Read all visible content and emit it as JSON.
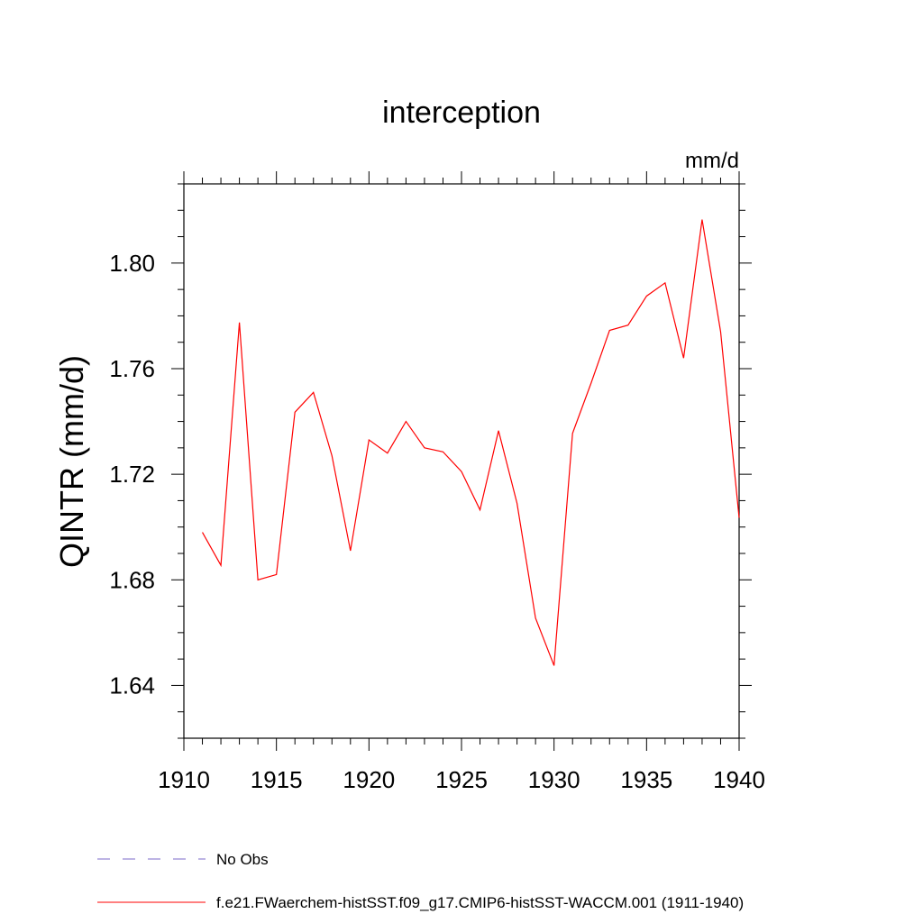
{
  "chart_data": {
    "type": "line",
    "title": "interception",
    "units_label": "mm/d",
    "ylabel": "QINTR  (mm/d)",
    "xlabel": "",
    "xlim": [
      1910,
      1940
    ],
    "ylim": [
      1.62,
      1.83
    ],
    "x_ticks": [
      1910,
      1915,
      1920,
      1925,
      1930,
      1935,
      1940
    ],
    "x_tick_labels": [
      "1910",
      "1915",
      "1920",
      "1925",
      "1930",
      "1935",
      "1940"
    ],
    "y_ticks": [
      1.64,
      1.68,
      1.72,
      1.76,
      1.8
    ],
    "y_tick_labels": [
      "1.64",
      "1.68",
      "1.72",
      "1.76",
      "1.80"
    ],
    "grid": false,
    "legend_position": "bottom",
    "series": [
      {
        "name": "f.e21.FWaerchem-histSST.f09_g17.CMIP6-histSST-WACCM.001 (1911-1940)",
        "color": "#ff0000",
        "style": "solid",
        "x": [
          1911,
          1912,
          1913,
          1914,
          1915,
          1916,
          1917,
          1918,
          1919,
          1920,
          1921,
          1922,
          1923,
          1924,
          1925,
          1926,
          1927,
          1928,
          1929,
          1930,
          1931,
          1932,
          1933,
          1934,
          1935,
          1936,
          1937,
          1938,
          1939,
          1940
        ],
        "values": [
          1.698,
          1.6855,
          1.7775,
          1.68,
          1.682,
          1.7435,
          1.751,
          1.727,
          1.691,
          1.733,
          1.728,
          1.74,
          1.73,
          1.7285,
          1.721,
          1.7065,
          1.7365,
          1.709,
          1.6655,
          1.6475,
          1.7355,
          1.7545,
          1.7745,
          1.7765,
          1.7875,
          1.7925,
          1.764,
          1.8165,
          1.774,
          1.7035
        ]
      }
    ],
    "legend": [
      {
        "label": "No Obs",
        "color": "#7b68c8",
        "style": "dashed"
      },
      {
        "label": "f.e21.FWaerchem-histSST.f09_g17.CMIP6-histSST-WACCM.001 (1911-1940)",
        "color": "#ff0000",
        "style": "solid"
      }
    ]
  }
}
